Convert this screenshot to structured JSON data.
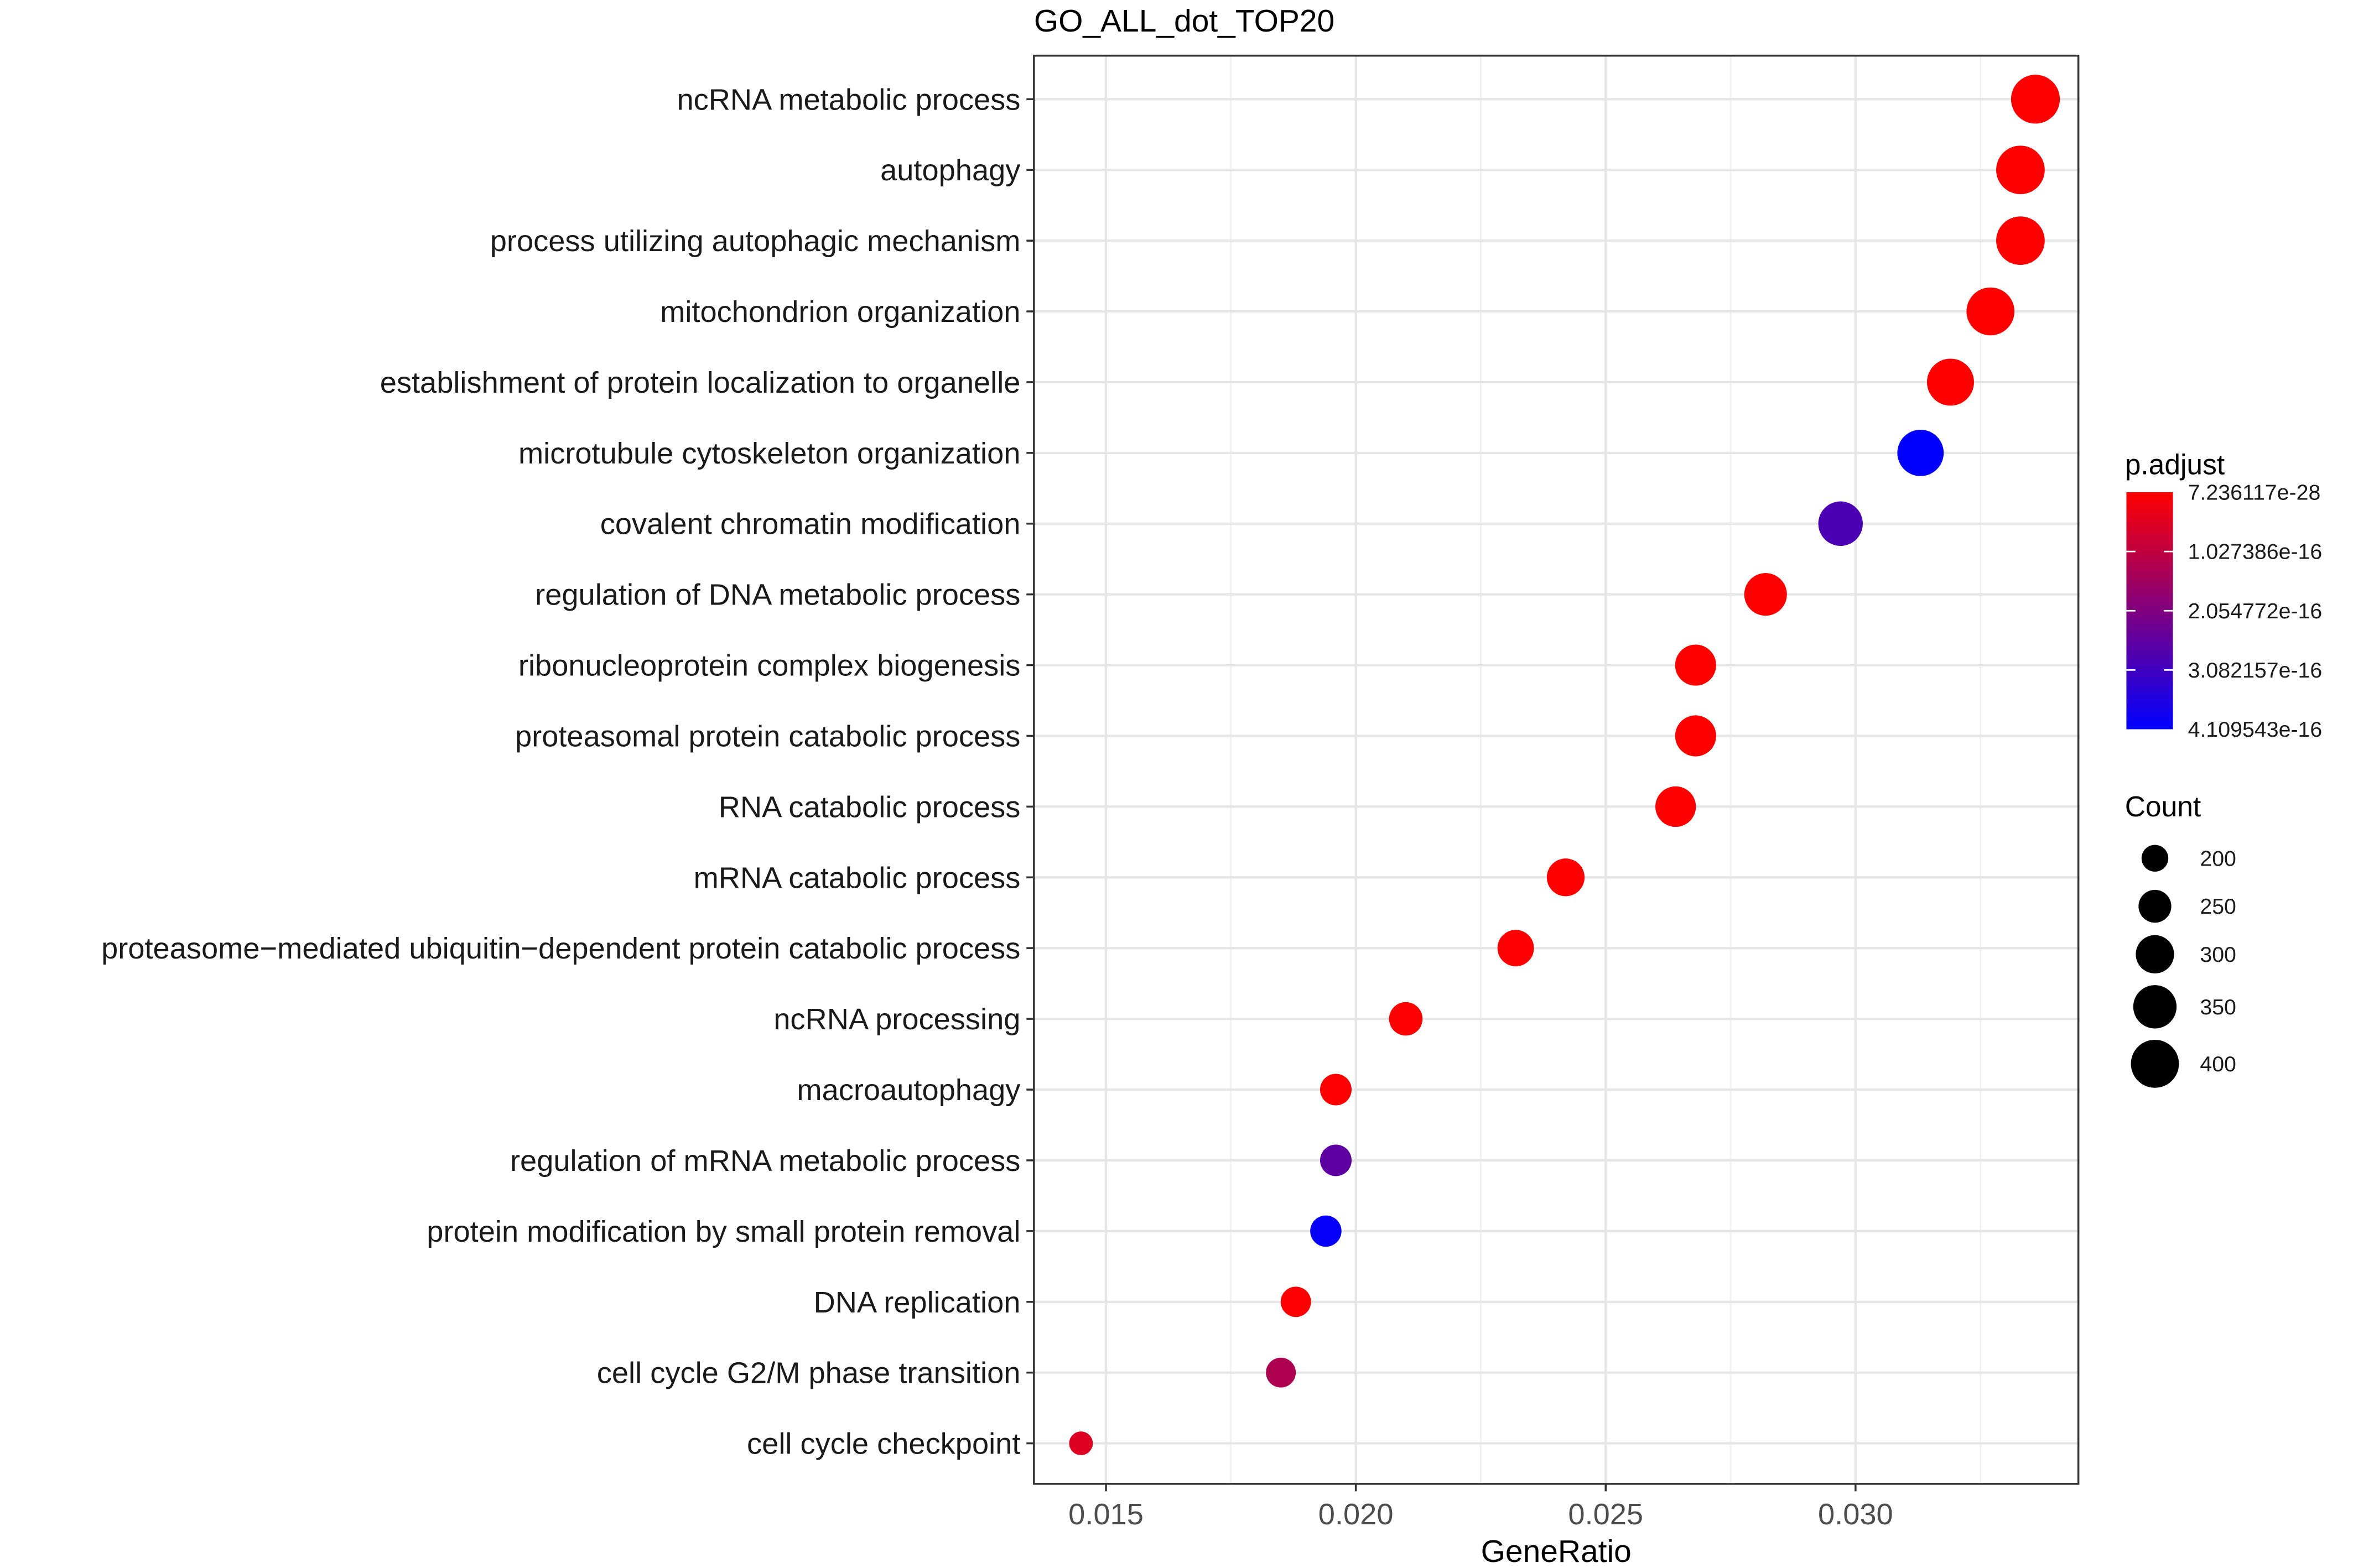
{
  "chart_data": {
    "type": "scatter",
    "title": "GO_ALL_dot_TOP20",
    "xlabel": "GeneRatio",
    "ylabel": "",
    "xlim": [
      0.0137,
      0.0342
    ],
    "xticks": [
      "0.015",
      "0.020",
      "0.025",
      "0.030"
    ],
    "xtick_values": [
      0.015,
      0.02,
      0.025,
      0.03
    ],
    "grid": true,
    "categories": [
      "ncRNA metabolic process",
      "autophagy",
      "process utilizing autophagic mechanism",
      "mitochondrion organization",
      "establishment of protein localization to organelle",
      "microtubule cytoskeleton organization",
      "covalent chromatin modification",
      "regulation of DNA metabolic process",
      "ribonucleoprotein complex biogenesis",
      "proteasomal protein catabolic process",
      "RNA catabolic process",
      "mRNA catabolic process",
      "proteasome−mediated ubiquitin−dependent protein catabolic process",
      "ncRNA processing",
      "macroautophagy",
      "regulation of mRNA metabolic process",
      "protein modification by small protein removal",
      "DNA replication",
      "cell cycle G2/M phase transition",
      "cell cycle checkpoint"
    ],
    "gene_ratio": [
      0.0336,
      0.0333,
      0.0333,
      0.0327,
      0.0319,
      0.0313,
      0.0297,
      0.0282,
      0.0268,
      0.0268,
      0.0264,
      0.0242,
      0.0232,
      0.021,
      0.0196,
      0.0196,
      0.0194,
      0.0188,
      0.0185,
      0.0145
    ],
    "count": [
      409,
      406,
      406,
      399,
      389,
      382,
      362,
      343,
      327,
      327,
      322,
      295,
      283,
      256,
      239,
      239,
      237,
      229,
      225,
      177
    ],
    "p_adjust": [
      1e-27,
      1e-26,
      1e-26,
      1e-24,
      1e-22,
      4.1e-16,
      2.9e-16,
      1e-21,
      1e-20,
      1e-20,
      1e-20,
      1e-19,
      1e-18,
      1e-18,
      1e-18,
      2.6e-16,
      4e-16,
      1e-18,
      1.3e-16,
      5.5e-17
    ],
    "color_legend": {
      "title": "p.adjust",
      "labels": [
        "7.236117e-28",
        "1.027386e-16",
        "2.054772e-16",
        "3.082157e-16",
        "4.109543e-16"
      ],
      "range": [
        7.236117e-28,
        4.109543e-16
      ],
      "low_color": "#ff0000",
      "high_color": "#0000ff",
      "placement": "right"
    },
    "size_legend": {
      "title": "Count",
      "labels": [
        "200",
        "250",
        "300",
        "350",
        "400"
      ],
      "values": [
        200,
        250,
        300,
        350,
        400
      ],
      "placement": "right"
    }
  }
}
